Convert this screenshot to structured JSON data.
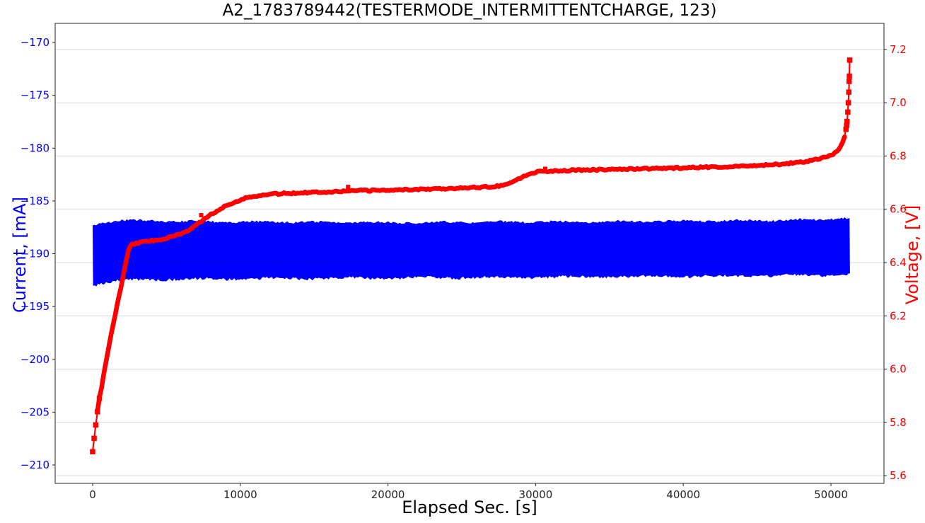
{
  "chart_data": {
    "type": "line",
    "title": "A2_1783789442(TESTERMODE_INTERMITTENTCHARGE, 123)",
    "background": "#ffffff",
    "grid": {
      "on": true,
      "color_rgba": "rgba(0,0,0,0.16)",
      "source": "right_axis"
    },
    "x_axis": {
      "label": "Elapsed Sec. [s]",
      "range": [
        -2538,
        53592
      ],
      "ticks": [
        0,
        10000,
        20000,
        30000,
        40000,
        50000
      ],
      "tick_labels": [
        "0",
        "10000",
        "20000",
        "30000",
        "40000",
        "50000"
      ],
      "tick_color": "#262626"
    },
    "left_axis": {
      "label": "Current, [mA]",
      "color": "#0000ff",
      "range": [
        -211.74,
        -168.19
      ],
      "ticks": [
        -170,
        -175,
        -180,
        -185,
        -190,
        -195,
        -200,
        -205,
        -210
      ],
      "tick_labels": [
        "−170",
        "−175",
        "−180",
        "−185",
        "−190",
        "−195",
        "−200",
        "−205",
        "−210"
      ]
    },
    "right_axis": {
      "label": "Voltage, [V]",
      "color": "#ff0000",
      "range": [
        5.571,
        7.298
      ],
      "ticks": [
        7.2,
        7.0,
        6.8,
        6.6,
        6.4,
        6.2,
        6.0,
        5.8,
        5.6
      ],
      "tick_labels": [
        "7.2",
        "7.0",
        "6.8",
        "6.6",
        "6.4",
        "6.2",
        "6.0",
        "5.8",
        "5.6"
      ]
    },
    "series": [
      {
        "name": "voltage",
        "axis": "right",
        "style": "line+square-markers",
        "color": "#ff0000",
        "points": [
          [
            0,
            5.69
          ],
          [
            100,
            5.74
          ],
          [
            210,
            5.79
          ],
          [
            330,
            5.84
          ],
          [
            460,
            5.89
          ],
          [
            600,
            5.93
          ],
          [
            760,
            5.985
          ],
          [
            950,
            6.04
          ],
          [
            1150,
            6.1
          ],
          [
            1400,
            6.17
          ],
          [
            1700,
            6.25
          ],
          [
            2000,
            6.33
          ],
          [
            2250,
            6.4
          ],
          [
            2450,
            6.45
          ],
          [
            2600,
            6.468
          ],
          [
            2900,
            6.472
          ],
          [
            3400,
            6.477
          ],
          [
            4000,
            6.482
          ],
          [
            4700,
            6.488
          ],
          [
            5400,
            6.497
          ],
          [
            6000,
            6.508
          ],
          [
            6500,
            6.522
          ],
          [
            7000,
            6.54
          ],
          [
            7400,
            6.556
          ],
          [
            7800,
            6.572
          ],
          [
            8300,
            6.59
          ],
          [
            8800,
            6.607
          ],
          [
            9400,
            6.623
          ],
          [
            10100,
            6.638
          ],
          [
            10900,
            6.649
          ],
          [
            11700,
            6.655
          ],
          [
            12800,
            6.659
          ],
          [
            14000,
            6.662
          ],
          [
            15500,
            6.665
          ],
          [
            17000,
            6.668
          ],
          [
            18500,
            6.67
          ],
          [
            20000,
            6.672
          ],
          [
            21500,
            6.674
          ],
          [
            23000,
            6.677
          ],
          [
            24500,
            6.679
          ],
          [
            26000,
            6.682
          ],
          [
            27000,
            6.685
          ],
          [
            27800,
            6.69
          ],
          [
            28400,
            6.703
          ],
          [
            29000,
            6.718
          ],
          [
            29600,
            6.733
          ],
          [
            30000,
            6.74
          ],
          [
            30600,
            6.743
          ],
          [
            31500,
            6.745
          ],
          [
            33000,
            6.747
          ],
          [
            35000,
            6.749
          ],
          [
            37000,
            6.752
          ],
          [
            39000,
            6.754
          ],
          [
            41000,
            6.757
          ],
          [
            43000,
            6.76
          ],
          [
            45000,
            6.764
          ],
          [
            46500,
            6.769
          ],
          [
            47800,
            6.776
          ],
          [
            48800,
            6.784
          ],
          [
            49500,
            6.793
          ],
          [
            50000,
            6.803
          ],
          [
            50350,
            6.815
          ],
          [
            50600,
            6.83
          ],
          [
            50800,
            6.85
          ],
          [
            50930,
            6.875
          ],
          [
            51020,
            6.9
          ],
          [
            51090,
            6.93
          ],
          [
            51140,
            6.965
          ],
          [
            51180,
            7.0
          ],
          [
            51210,
            7.04
          ],
          [
            51235,
            7.08
          ],
          [
            51255,
            7.115
          ],
          [
            51270,
            7.16
          ]
        ],
        "thick_range": [
          350,
          50950
        ],
        "start_markers": [
          [
            0,
            5.69
          ],
          [
            100,
            5.74
          ],
          [
            210,
            5.79
          ],
          [
            330,
            5.84
          ],
          [
            460,
            5.89
          ]
        ],
        "tail_markers": [
          [
            51020,
            6.9
          ],
          [
            51060,
            6.915
          ],
          [
            51090,
            6.93
          ],
          [
            51140,
            6.965
          ],
          [
            51180,
            7.0
          ],
          [
            51210,
            7.04
          ],
          [
            51235,
            7.08
          ],
          [
            51248,
            7.1
          ],
          [
            51270,
            7.16
          ]
        ],
        "bump_markers": [
          [
            7350,
            6.578
          ],
          [
            17300,
            6.684
          ],
          [
            30650,
            6.752
          ]
        ]
      },
      {
        "name": "current",
        "axis": "left",
        "style": "noisy-band",
        "color": "#0000ff",
        "t_range": [
          0,
          51290
        ],
        "envelope": [
          [
            0,
            -187.3,
            -193.0
          ],
          [
            800,
            -187.0,
            -192.75
          ],
          [
            2000,
            -186.85,
            -192.55
          ],
          [
            4000,
            -186.9,
            -192.45
          ],
          [
            8000,
            -186.95,
            -192.4
          ],
          [
            14000,
            -187.0,
            -192.35
          ],
          [
            20000,
            -187.05,
            -192.3
          ],
          [
            27000,
            -187.0,
            -192.25
          ],
          [
            34000,
            -186.95,
            -192.2
          ],
          [
            41000,
            -186.9,
            -192.15
          ],
          [
            46000,
            -186.85,
            -192.1
          ],
          [
            49500,
            -186.75,
            -192.05
          ],
          [
            51290,
            -186.6,
            -191.95
          ]
        ]
      }
    ],
    "frame_color": "#262626"
  }
}
